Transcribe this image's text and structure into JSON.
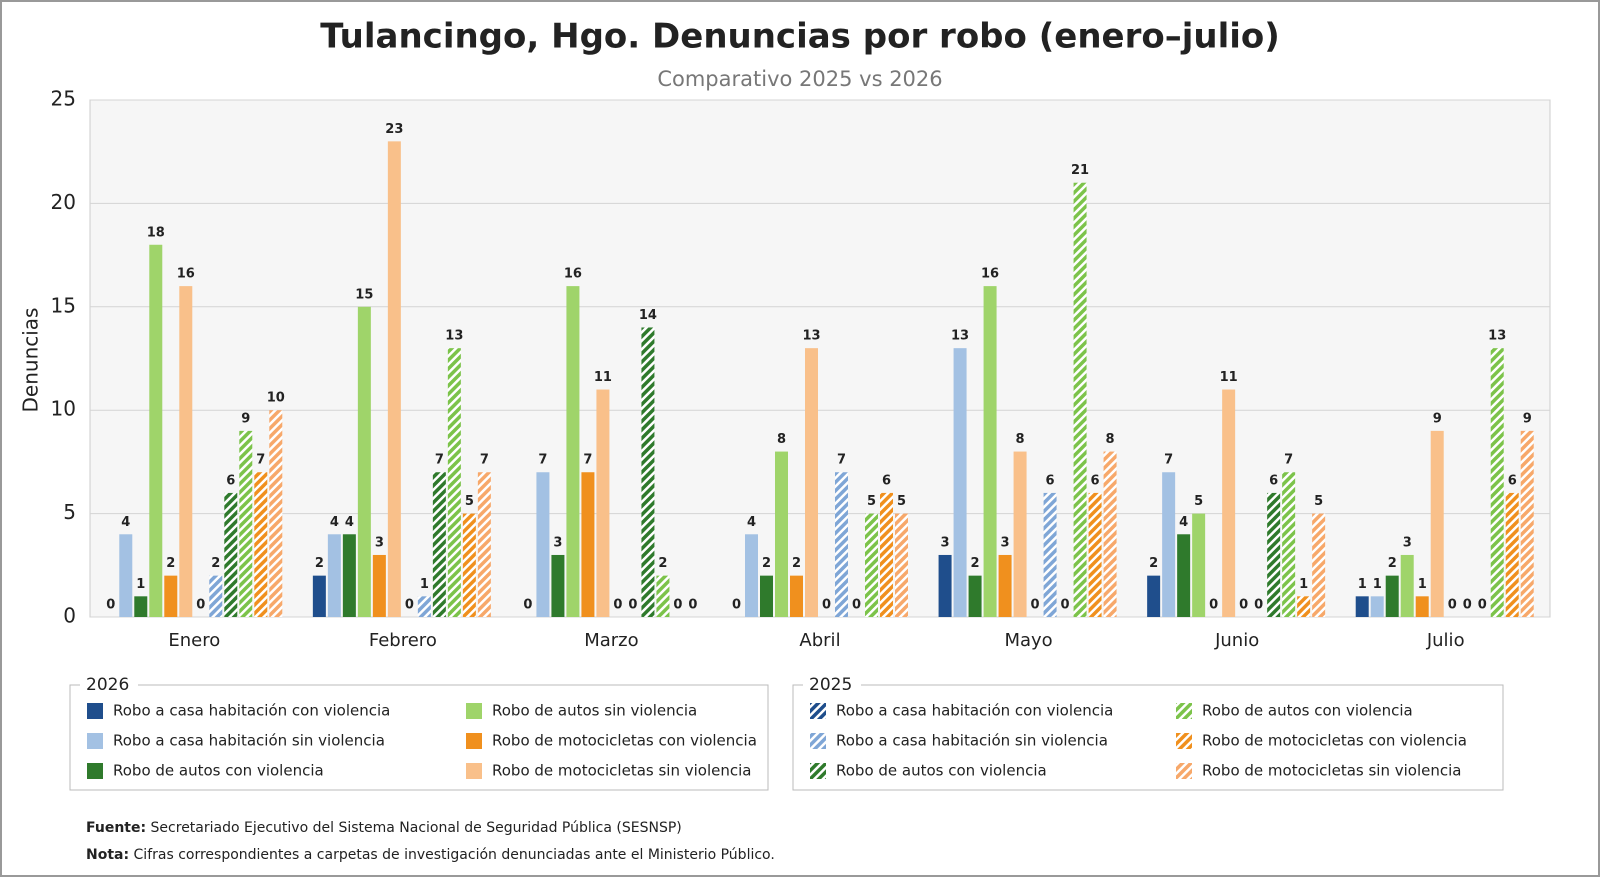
{
  "chart_data": {
    "type": "bar",
    "title": "Tulancingo, Hgo. Denuncias por robo (enero–julio)",
    "subtitle": "Comparativo 2025 vs 2026",
    "y_label": "Denuncias",
    "categories": [
      "Enero",
      "Febrero",
      "Marzo",
      "Abril",
      "Mayo",
      "Junio",
      "Julio"
    ],
    "ylim": [
      0,
      25
    ],
    "yticks": [
      0,
      5,
      10,
      15,
      20,
      25
    ],
    "grid": true,
    "legend_groups": [
      "2026",
      "2025"
    ],
    "series": [
      {
        "name": "Robo a casa habitación con violencia",
        "group": 0,
        "hatched": false,
        "color": "#1f4e8c",
        "values": [
          0,
          2,
          0,
          0,
          3,
          2,
          1
        ]
      },
      {
        "name": "Robo a casa habitación sin violencia",
        "group": 0,
        "hatched": false,
        "color": "#a3c1e3",
        "values": [
          4,
          4,
          7,
          4,
          13,
          7,
          1
        ]
      },
      {
        "name": "Robo de autos con violencia",
        "group": 0,
        "hatched": false,
        "color": "#2f7a2c",
        "values": [
          1,
          4,
          3,
          2,
          2,
          4,
          2
        ]
      },
      {
        "name": "Robo de autos sin violencia",
        "group": 0,
        "hatched": false,
        "color": "#9fd46a",
        "values": [
          18,
          15,
          16,
          8,
          16,
          5,
          3
        ]
      },
      {
        "name": "Robo de motocicletas con violencia",
        "group": 0,
        "hatched": false,
        "color": "#f0901e",
        "values": [
          2,
          3,
          7,
          2,
          3,
          0,
          1
        ]
      },
      {
        "name": "Robo de motocicletas sin violencia",
        "group": 0,
        "hatched": false,
        "color": "#f9c08a",
        "values": [
          16,
          23,
          11,
          13,
          8,
          11,
          9
        ]
      },
      {
        "name": "Robo a casa habitación con violencia",
        "group": 1,
        "hatched": true,
        "color": "#1f4e8c",
        "values": [
          0,
          0,
          0,
          0,
          0,
          0,
          0
        ]
      },
      {
        "name": "Robo a casa habitación sin violencia",
        "group": 1,
        "hatched": true,
        "color": "#7fa6d6",
        "values": [
          2,
          1,
          0,
          7,
          6,
          0,
          0
        ]
      },
      {
        "name": "Robo de autos con violencia",
        "group": 1,
        "hatched": true,
        "color": "#2f7a2c",
        "values": [
          6,
          7,
          14,
          0,
          0,
          6,
          0
        ]
      },
      {
        "name": "Robo de autos con violencia",
        "group": 1,
        "hatched": true,
        "color": "#7cc34a",
        "values": [
          9,
          13,
          2,
          5,
          21,
          7,
          13
        ]
      },
      {
        "name": "Robo de motocicletas con violencia",
        "group": 1,
        "hatched": true,
        "color": "#f0901e",
        "values": [
          7,
          5,
          0,
          6,
          6,
          1,
          6
        ]
      },
      {
        "name": "Robo de motocicletas sin violencia",
        "group": 1,
        "hatched": true,
        "color": "#f7a86a",
        "values": [
          10,
          7,
          0,
          5,
          8,
          5,
          9
        ]
      }
    ],
    "source_label": "Fuente:",
    "source": "Secretariado Ejecutivo del Sistema Nacional de Seguridad Pública (SESNSP)",
    "note_label": "Nota:",
    "note": "Cifras correspondientes a carpetas de investigación denunciadas ante el Ministerio Público."
  }
}
